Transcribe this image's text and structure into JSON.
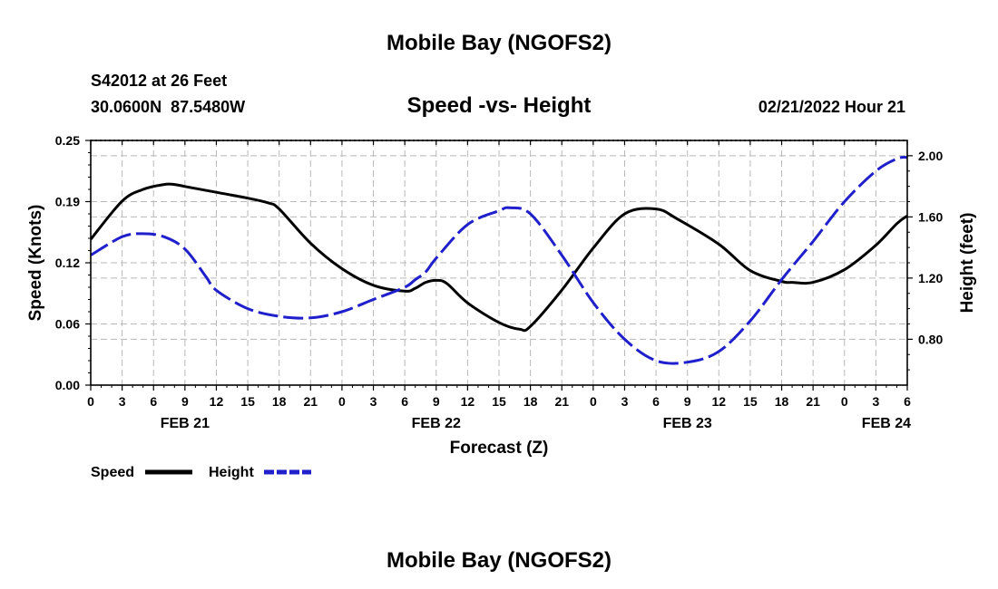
{
  "page": {
    "title": "Mobile Bay (NGOFS2)",
    "footer_title": "Mobile Bay (NGOFS2)"
  },
  "chart_data": {
    "type": "line",
    "title": "Speed -vs- Height",
    "station": "S42012 at 26 Feet",
    "coords": "30.0600N  87.5480W",
    "date": "02/21/2022 Hour 21",
    "xlabel": "Forecast (Z)",
    "ylabel_left": "Speed (Knots)",
    "ylabel_right": "Height (feet)",
    "x_range": [
      0,
      78
    ],
    "x_ticks": [
      0,
      3,
      6,
      9,
      12,
      15,
      18,
      21,
      24,
      27,
      30,
      33,
      36,
      39,
      42,
      45,
      48,
      51,
      54,
      57,
      60,
      63,
      66,
      69,
      72,
      75,
      78
    ],
    "x_tick_labels": [
      "0",
      "3",
      "6",
      "9",
      "12",
      "15",
      "18",
      "21",
      "0",
      "3",
      "6",
      "9",
      "12",
      "15",
      "18",
      "21",
      "0",
      "3",
      "6",
      "9",
      "12",
      "15",
      "18",
      "21",
      "0",
      "3",
      "6"
    ],
    "day_labels": [
      {
        "x": 9,
        "label": "FEB 21"
      },
      {
        "x": 33,
        "label": "FEB 22"
      },
      {
        "x": 57,
        "label": "FEB 23"
      },
      {
        "x": 76,
        "label": "FEB 24"
      }
    ],
    "y_left_range": [
      0,
      0.25
    ],
    "y_left_ticks": [
      0,
      0.0625,
      0.125,
      0.1875,
      0.25
    ],
    "y_left_tick_labels": [
      "0.00",
      "0.06",
      "0.12",
      "0.19",
      "0.25"
    ],
    "y_right_range": [
      0.5,
      2.1
    ],
    "y_right_ticks": [
      0.8,
      1.2,
      1.6,
      2.0
    ],
    "y_right_tick_labels": [
      "0.80",
      "1.20",
      "1.60",
      "2.00"
    ],
    "grid": true,
    "series": [
      {
        "name": "Speed",
        "axis": "left",
        "color": "#000000",
        "style": "solid",
        "x": [
          0,
          3,
          5,
          7,
          8,
          9,
          12,
          15,
          17,
          18,
          21,
          24,
          27,
          30,
          31,
          32,
          33,
          34,
          36,
          39,
          41,
          42,
          45,
          48,
          51,
          54,
          56,
          60,
          63,
          66,
          67,
          69,
          72,
          75,
          77,
          78
        ],
        "values": [
          0.149,
          0.188,
          0.2,
          0.205,
          0.205,
          0.203,
          0.197,
          0.191,
          0.186,
          0.18,
          0.145,
          0.119,
          0.102,
          0.096,
          0.099,
          0.105,
          0.107,
          0.104,
          0.084,
          0.064,
          0.057,
          0.06,
          0.097,
          0.14,
          0.175,
          0.18,
          0.17,
          0.144,
          0.117,
          0.106,
          0.105,
          0.105,
          0.118,
          0.143,
          0.165,
          0.173
        ]
      },
      {
        "name": "Height",
        "axis": "right",
        "color": "#1f1fcc",
        "style": "dashed",
        "x": [
          0,
          3,
          5,
          7,
          9,
          11,
          12,
          15,
          18,
          21,
          24,
          27,
          30,
          31,
          32,
          33,
          36,
          39,
          40,
          42,
          45,
          48,
          51,
          54,
          57,
          60,
          63,
          66,
          69,
          72,
          75,
          77,
          78
        ],
        "values": [
          1.35,
          1.47,
          1.49,
          1.47,
          1.39,
          1.21,
          1.12,
          1.0,
          0.95,
          0.94,
          0.98,
          1.06,
          1.14,
          1.19,
          1.24,
          1.33,
          1.55,
          1.64,
          1.66,
          1.62,
          1.35,
          1.04,
          0.8,
          0.66,
          0.65,
          0.72,
          0.92,
          1.19,
          1.44,
          1.7,
          1.9,
          1.98,
          1.99
        ]
      }
    ],
    "legend": {
      "position": "bottom-left",
      "items": [
        {
          "label": "Speed",
          "color": "#000000",
          "style": "solid"
        },
        {
          "label": "Height",
          "color": "#1f1fcc",
          "style": "dashed"
        }
      ]
    }
  }
}
